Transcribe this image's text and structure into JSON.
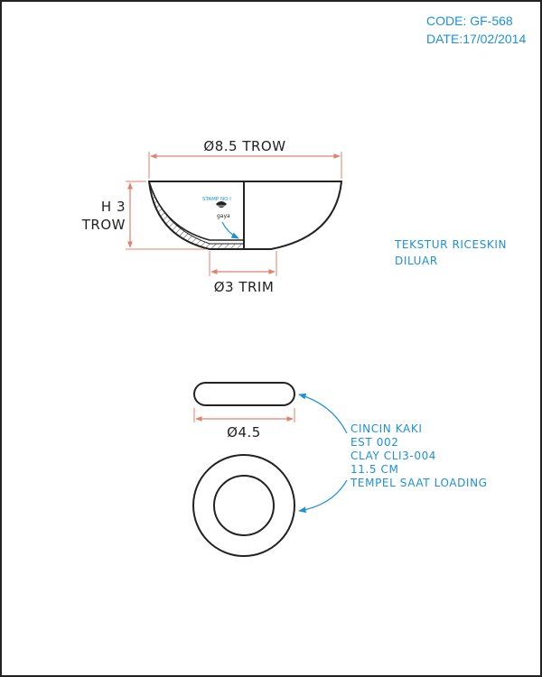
{
  "header": {
    "code": "CODE: GF-568",
    "date": "DATE:17/02/2014"
  },
  "bowl": {
    "width_label": "Ø8.5 TROW",
    "height_label_line1": "H 3",
    "height_label_line2": "TROW",
    "base_label": "Ø3 TRIM",
    "stamp_label": "STAMP NO I",
    "stamp_mark": "gaya",
    "texture_note_line1": "TEKSTUR RICESKIN",
    "texture_note_line2": "DILUAR"
  },
  "foot_ring": {
    "diameter_label": "Ø4.5",
    "note_lines": [
      "CINCIN KAKI",
      "EST 002",
      "CLAY CLI3-004",
      "11.5 CM",
      "TEMPEL SAAT LOADING"
    ]
  },
  "colors": {
    "outline": "#222222",
    "dimension": "#e0826a",
    "annotation": "#1e90d6"
  }
}
